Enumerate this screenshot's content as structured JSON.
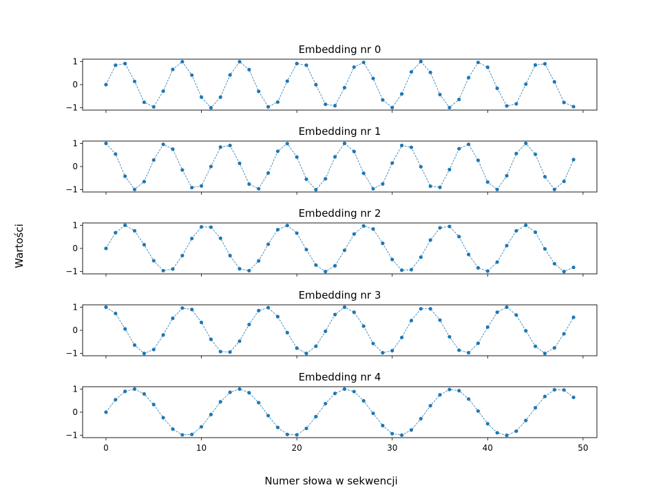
{
  "figure": {
    "ylabel": "Wartości",
    "xlabel": "Numer słowa w sekwencji"
  },
  "colors": {
    "series": "#1f77b4",
    "axes": "#000000"
  },
  "chart_data": {
    "type": "line",
    "marker": "dot",
    "line_style": "dashed",
    "x_range": [
      0,
      49
    ],
    "xlim": [
      -2.45,
      51.45
    ],
    "ylim": [
      -1.1,
      1.1
    ],
    "xticks": [
      0,
      10,
      20,
      30,
      40,
      50
    ],
    "xtick_labels": [
      "0",
      "10",
      "20",
      "30",
      "40",
      "50"
    ],
    "yticks": [
      1,
      0,
      -1
    ],
    "ytick_labels": [
      "1",
      "0",
      "−1"
    ],
    "shared_x": true,
    "grid": false,
    "panels": [
      {
        "title": "Embedding nr 0",
        "values": [
          0,
          0.84,
          0.91,
          0.14,
          -0.76,
          -0.96,
          -0.28,
          0.66,
          0.99,
          0.41,
          -0.54,
          -1.0,
          -0.54,
          0.42,
          0.99,
          0.65,
          -0.29,
          -0.96,
          -0.75,
          0.15,
          0.91,
          0.84,
          0.0,
          -0.85,
          -0.91,
          -0.13,
          0.76,
          0.96,
          0.27,
          -0.66,
          -0.99,
          -0.4,
          0.55,
          1.0,
          0.53,
          -0.43,
          -0.99,
          -0.64,
          0.3,
          0.96,
          0.75,
          -0.16,
          -0.92,
          -0.83,
          0.02,
          0.85,
          0.9,
          0.12,
          -0.77,
          -0.95
        ]
      },
      {
        "title": "Embedding nr 1",
        "values": [
          1.0,
          0.54,
          -0.42,
          -0.99,
          -0.65,
          0.28,
          0.96,
          0.75,
          -0.15,
          -0.91,
          -0.84,
          0.0,
          0.84,
          0.91,
          0.14,
          -0.76,
          -0.96,
          -0.28,
          0.66,
          0.99,
          0.41,
          -0.55,
          -1.0,
          -0.53,
          0.42,
          1.0,
          0.65,
          -0.29,
          -0.96,
          -0.75,
          0.15,
          0.91,
          0.83,
          -0.01,
          -0.85,
          -0.9,
          -0.13,
          0.77,
          0.96,
          0.27,
          -0.67,
          -0.99,
          -0.4,
          0.56,
          1.0,
          0.53,
          -0.44,
          -0.99,
          -0.64,
          0.3
        ]
      },
      {
        "title": "Embedding nr 2",
        "values": [
          0.0,
          0.68,
          1.0,
          0.76,
          0.16,
          -0.53,
          -0.96,
          -0.89,
          -0.31,
          0.43,
          0.93,
          0.92,
          0.44,
          -0.31,
          -0.88,
          -0.96,
          -0.54,
          0.18,
          0.81,
          0.99,
          0.66,
          -0.05,
          -0.72,
          -1.0,
          -0.75,
          -0.08,
          0.62,
          0.97,
          0.84,
          0.22,
          -0.48,
          -0.94,
          -0.92,
          -0.38,
          0.36,
          0.89,
          0.95,
          0.51,
          -0.26,
          -0.84,
          -0.98,
          -0.59,
          0.12,
          0.76,
          1.0,
          0.7,
          -0.02,
          -0.66,
          -1.0,
          -0.82
        ]
      },
      {
        "title": "Embedding nr 3",
        "values": [
          1.0,
          0.73,
          0.06,
          -0.64,
          -1.0,
          -0.83,
          -0.2,
          0.52,
          0.96,
          0.9,
          0.34,
          -0.39,
          -0.92,
          -0.94,
          -0.47,
          0.25,
          0.85,
          0.98,
          0.59,
          -0.1,
          -0.77,
          -1.0,
          -0.69,
          -0.04,
          0.68,
          1.0,
          0.78,
          0.18,
          -0.57,
          -0.97,
          -0.88,
          -0.31,
          0.42,
          0.93,
          0.93,
          0.44,
          -0.28,
          -0.86,
          -0.97,
          -0.56,
          0.14,
          0.78,
          1.0,
          0.66,
          -0.02,
          -0.69,
          -1.0,
          -0.76,
          -0.15,
          0.56
        ]
      },
      {
        "title": "Embedding nr 4",
        "values": [
          0.0,
          0.54,
          0.9,
          1.0,
          0.79,
          0.33,
          -0.24,
          -0.73,
          -0.98,
          -0.96,
          -0.63,
          -0.1,
          0.45,
          0.86,
          1.0,
          0.84,
          0.41,
          -0.15,
          -0.66,
          -0.96,
          -0.98,
          -0.7,
          -0.19,
          0.37,
          0.81,
          1.0,
          0.89,
          0.49,
          -0.05,
          -0.58,
          -0.93,
          -0.99,
          -0.77,
          -0.28,
          0.28,
          0.75,
          0.98,
          0.93,
          0.57,
          0.05,
          -0.5,
          -0.89,
          -1.0,
          -0.82,
          -0.36,
          0.19,
          0.68,
          0.97,
          0.96,
          0.64
        ]
      }
    ]
  }
}
